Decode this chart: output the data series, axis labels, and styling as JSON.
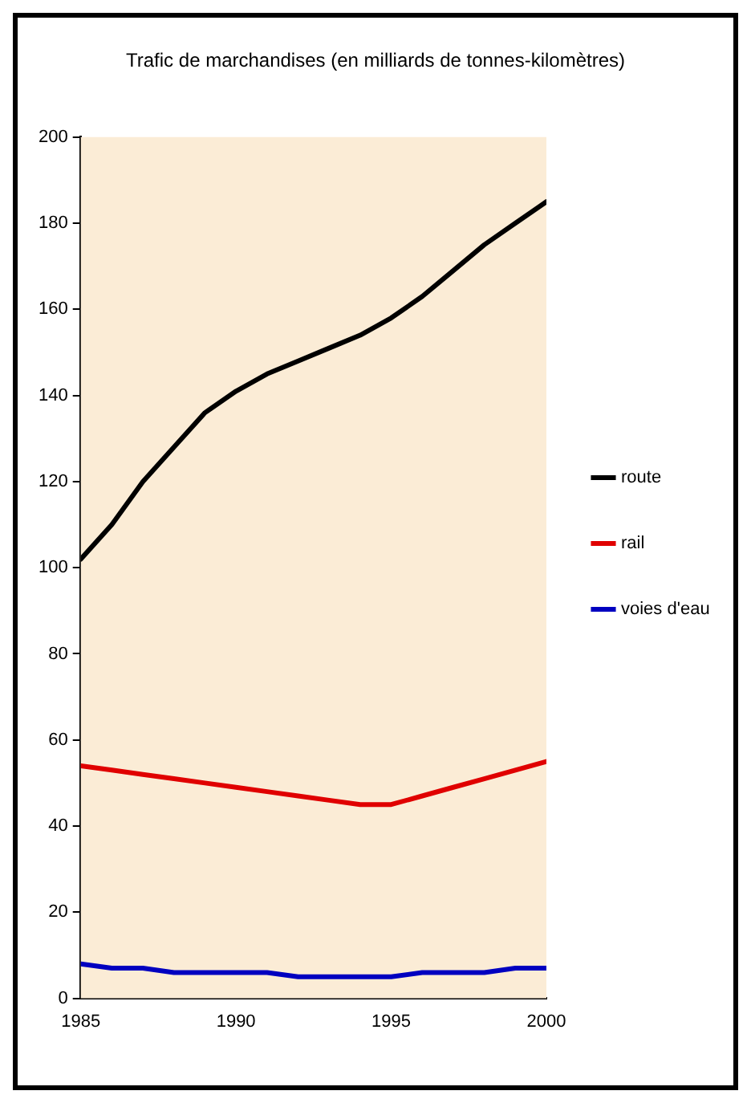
{
  "chart_data": {
    "type": "line",
    "title": "Trafic de marchandises (en milliards de tonnes-kilomètres)",
    "x": [
      1985,
      1986,
      1987,
      1988,
      1989,
      1990,
      1991,
      1992,
      1993,
      1994,
      1995,
      1996,
      1997,
      1998,
      1999,
      2000
    ],
    "series": [
      {
        "name": "route",
        "color": "#000000",
        "values": [
          102,
          110,
          120,
          128,
          136,
          141,
          145,
          148,
          151,
          154,
          158,
          163,
          169,
          175,
          180,
          185
        ]
      },
      {
        "name": "rail",
        "color": "#e00000",
        "values": [
          54,
          53,
          52,
          51,
          50,
          49,
          48,
          47,
          46,
          45,
          45,
          47,
          49,
          51,
          53,
          55
        ]
      },
      {
        "name": "voies d'eau",
        "color": "#0000c0",
        "values": [
          8,
          7,
          7,
          6,
          6,
          6,
          6,
          5,
          5,
          5,
          5,
          6,
          6,
          6,
          7,
          7
        ]
      }
    ],
    "xlim": [
      1985,
      2000
    ],
    "xticks": [
      1985,
      1990,
      1995,
      2000
    ],
    "ylim": [
      0,
      200
    ],
    "yticks": [
      0,
      20,
      40,
      60,
      80,
      100,
      120,
      140,
      160,
      180,
      200
    ],
    "grid": false,
    "legend": "right",
    "marker": "none",
    "line_style": "solid"
  }
}
